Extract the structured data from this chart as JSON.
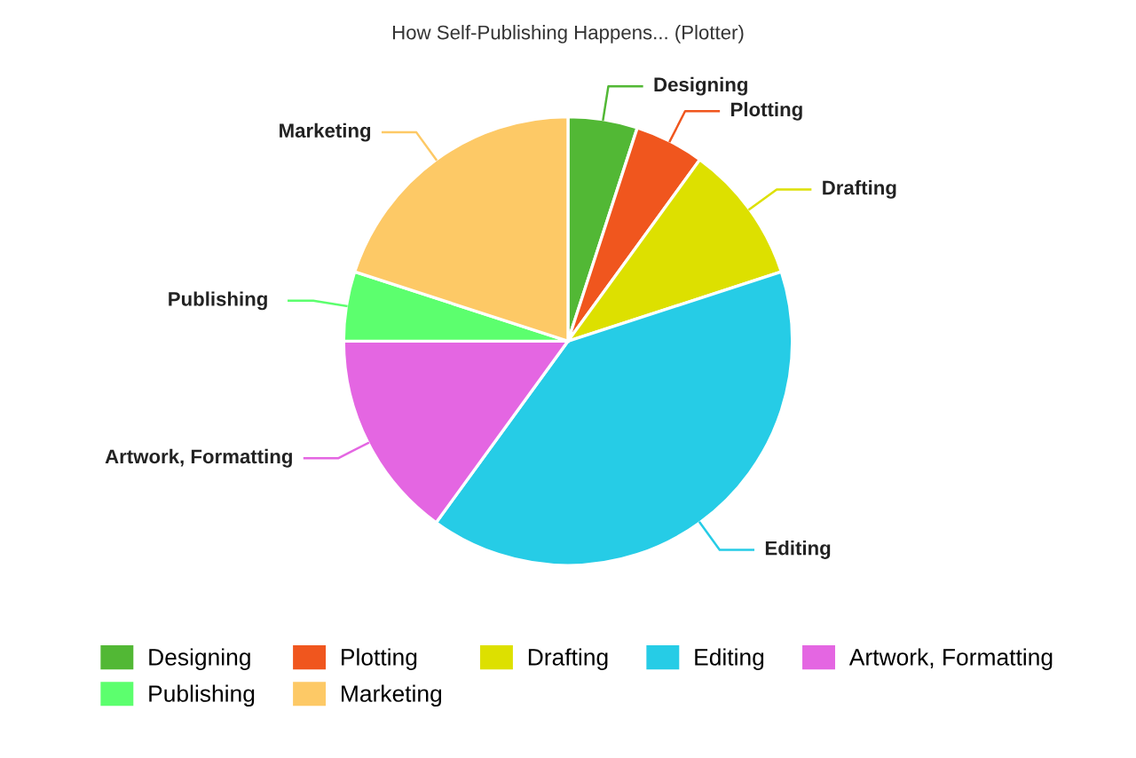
{
  "chart_data": {
    "type": "pie",
    "title": "How Self-Publishing Happens... (Plotter)",
    "categories": [
      "Designing",
      "Plotting",
      "Drafting",
      "Editing",
      "Artwork, Formatting",
      "Publishing",
      "Marketing"
    ],
    "values": [
      5,
      5,
      10,
      40,
      15,
      5,
      20
    ],
    "colors": [
      "#52b835",
      "#f0561e",
      "#dde000",
      "#26cce6",
      "#e466e2",
      "#5cff6e",
      "#fdc966"
    ],
    "legend": "bottom"
  }
}
